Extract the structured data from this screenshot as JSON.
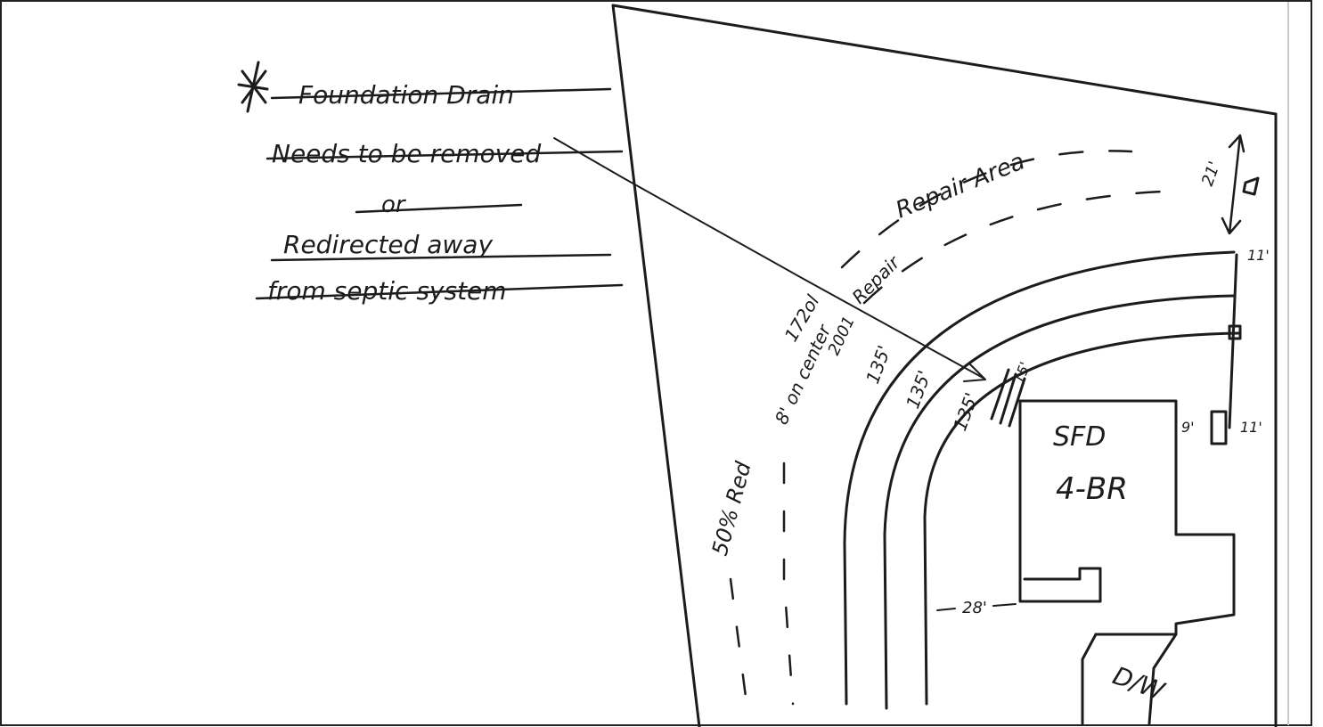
{
  "note": {
    "star": "*",
    "line1": "Foundation Drain",
    "line2": "Needs to be removed",
    "line3": "or",
    "line4": "Redirected away",
    "line5": "from septic system"
  },
  "labels": {
    "repair_area": "Repair Area",
    "repair": "Repair",
    "seventy_two_of": "172ol",
    "on_center": "8' on center",
    "year": "2001",
    "reduction": "50% Red",
    "trench_1": "135'",
    "trench_2": "135'",
    "trench_3": "135'",
    "trench_4": "15'",
    "house_1": "SFD",
    "house_2": "4-BR",
    "driveway": "D/W",
    "dist_28": "28'",
    "dist_21": "21'",
    "dist_11_top": "11'",
    "dist_9": "9'",
    "dist_11_right": "11'"
  }
}
